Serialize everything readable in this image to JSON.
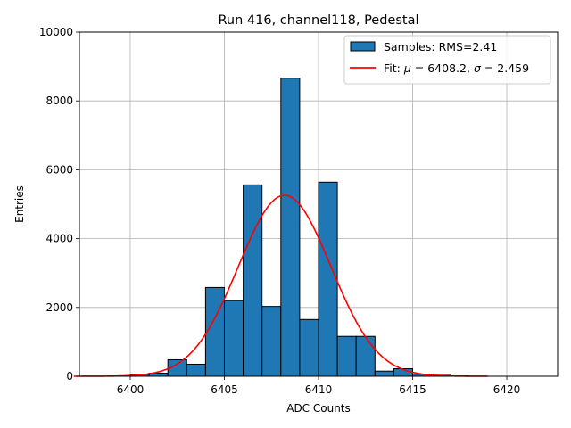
{
  "chart_data": {
    "type": "bar",
    "title": "Run 416, channel118, Pedestal",
    "xlabel": "ADC Counts",
    "ylabel": "Entries",
    "xlim": [
      6397.3,
      6422.7
    ],
    "ylim": [
      0,
      10000
    ],
    "xticks": [
      6400,
      6405,
      6410,
      6415,
      6420
    ],
    "yticks": [
      0,
      2000,
      4000,
      6000,
      8000,
      10000
    ],
    "grid": true,
    "legend_position": "top-right",
    "histogram": {
      "name": "Samples: RMS=2.41",
      "color": "#1f77b4",
      "bin_edges": [
        6400,
        6401,
        6402,
        6403,
        6404,
        6405,
        6406,
        6407,
        6408,
        6409,
        6410,
        6411,
        6412,
        6413,
        6414,
        6415,
        6416,
        6417,
        6418,
        6419,
        6420,
        6421
      ],
      "counts": [
        50,
        90,
        480,
        350,
        2580,
        2200,
        5560,
        2030,
        8660,
        1650,
        5640,
        1160,
        1160,
        150,
        220,
        60,
        30,
        10,
        0,
        0,
        0
      ]
    },
    "fit": {
      "label_prefix": "Fit: ",
      "mu_symbol": "μ",
      "mu_value": "= 6408.2,",
      "sigma_symbol": "σ",
      "sigma_value": "= 2.459",
      "color": "#ff0000",
      "mu": 6408.2,
      "sigma": 2.459,
      "amplitude": 5260,
      "x_range": [
        6397,
        6419
      ]
    }
  }
}
